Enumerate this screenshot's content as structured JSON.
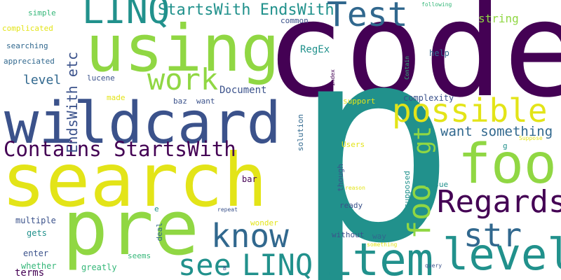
{
  "palette": {
    "purple": "#440154",
    "indigo": "#3b528b",
    "blue": "#31688e",
    "teal": "#21918c",
    "green": "#35b779",
    "lime": "#90d743",
    "yellow": "#e3e418"
  },
  "words": [
    {
      "id": "code",
      "text": "code",
      "color": "purple"
    },
    {
      "id": "p",
      "text": "p",
      "color": "teal"
    },
    {
      "id": "search",
      "text": "search",
      "color": "yellow"
    },
    {
      "id": "pre",
      "text": "pre",
      "color": "lime"
    },
    {
      "id": "using",
      "text": "using",
      "color": "lime"
    },
    {
      "id": "wildcard",
      "text": "wildcard",
      "color": "indigo"
    },
    {
      "id": "foo-large",
      "text": "foo",
      "color": "lime"
    },
    {
      "id": "item",
      "text": "item",
      "color": "teal"
    },
    {
      "id": "level-large",
      "text": "level",
      "color": "teal"
    },
    {
      "id": "linq-top",
      "text": "LINQ",
      "color": "teal"
    },
    {
      "id": "test",
      "text": "Test",
      "color": "blue"
    },
    {
      "id": "possible",
      "text": "possible",
      "color": "yellow"
    },
    {
      "id": "regards",
      "text": "Regards",
      "color": "purple"
    },
    {
      "id": "str",
      "text": "str",
      "color": "blue"
    },
    {
      "id": "know",
      "text": "know",
      "color": "blue"
    },
    {
      "id": "see",
      "text": "see",
      "color": "teal"
    },
    {
      "id": "linq-bottom",
      "text": "LINQ",
      "color": "teal"
    },
    {
      "id": "work",
      "text": "work",
      "color": "lime"
    },
    {
      "id": "contains-startswith",
      "text": "Contains StartsWith",
      "color": "purple"
    },
    {
      "id": "startswith-endswith",
      "text": "StartsWith EndsWith",
      "color": "teal"
    },
    {
      "id": "foo-vertical",
      "text": "foo",
      "color": "lime"
    },
    {
      "id": "gt",
      "text": "gt",
      "color": "lime"
    },
    {
      "id": "want-something",
      "text": "want something",
      "color": "blue"
    },
    {
      "id": "endswith-etc",
      "text": "EndsWith etc",
      "color": "indigo"
    },
    {
      "id": "level-small",
      "text": "level",
      "color": "blue"
    },
    {
      "id": "document",
      "text": "Document",
      "color": "indigo"
    },
    {
      "id": "string",
      "text": "string",
      "color": "lime"
    },
    {
      "id": "regex",
      "text": "RegEx",
      "color": "teal"
    },
    {
      "id": "terms",
      "text": "terms",
      "color": "purple"
    },
    {
      "id": "greatly",
      "text": "greatly",
      "color": "green"
    },
    {
      "id": "whether",
      "text": "whether",
      "color": "green"
    },
    {
      "id": "seems",
      "text": "seems",
      "color": "green"
    },
    {
      "id": "enter",
      "text": "enter",
      "color": "indigo"
    },
    {
      "id": "gets",
      "text": "gets",
      "color": "teal"
    },
    {
      "id": "multiple",
      "text": "multiple",
      "color": "indigo"
    },
    {
      "id": "deal",
      "text": "deal",
      "color": "blue"
    },
    {
      "id": "e",
      "text": "e",
      "color": "teal"
    },
    {
      "id": "wonder",
      "text": "wonder",
      "color": "yellow"
    },
    {
      "id": "without",
      "text": "without",
      "color": "indigo"
    },
    {
      "id": "way",
      "text": "way",
      "color": "blue"
    },
    {
      "id": "something-small",
      "text": "something",
      "color": "yellow"
    },
    {
      "id": "query",
      "text": "query",
      "color": "indigo"
    },
    {
      "id": "repeat",
      "text": "repeat",
      "color": "indigo"
    },
    {
      "id": "b",
      "text": "B",
      "color": "indigo"
    },
    {
      "id": "ready",
      "text": "ready",
      "color": "indigo"
    },
    {
      "id": "bar",
      "text": "bar",
      "color": "purple"
    },
    {
      "id": "though",
      "text": "though",
      "color": "indigo"
    },
    {
      "id": "reason",
      "text": "reason",
      "color": "yellow"
    },
    {
      "id": "supposed",
      "text": "supposed",
      "color": "teal"
    },
    {
      "id": "issue",
      "text": "issue",
      "color": "teal"
    },
    {
      "id": "g",
      "text": "g",
      "color": "teal"
    },
    {
      "id": "suppose",
      "text": "Suppose",
      "color": "yellow"
    },
    {
      "id": "users",
      "text": "Users",
      "color": "yellow"
    },
    {
      "id": "solution",
      "text": "solution",
      "color": "blue"
    },
    {
      "id": "support",
      "text": "support",
      "color": "yellow"
    },
    {
      "id": "complexity",
      "text": "complexity",
      "color": "indigo"
    },
    {
      "id": "help",
      "text": "help",
      "color": "blue"
    },
    {
      "id": "index",
      "text": "index",
      "color": "purple"
    },
    {
      "id": "contain",
      "text": "Contain",
      "color": "green"
    },
    {
      "id": "following",
      "text": "following",
      "color": "green"
    },
    {
      "id": "common",
      "text": "common",
      "color": "indigo"
    },
    {
      "id": "lucene",
      "text": "lucene",
      "color": "indigo"
    },
    {
      "id": "want-small",
      "text": "want",
      "color": "indigo"
    },
    {
      "id": "baz",
      "text": "baz",
      "color": "indigo"
    },
    {
      "id": "made",
      "text": "made",
      "color": "yellow"
    },
    {
      "id": "simple",
      "text": "simple",
      "color": "green"
    },
    {
      "id": "complicated",
      "text": "complicated",
      "color": "yellow"
    },
    {
      "id": "searching",
      "text": "searching",
      "color": "blue"
    },
    {
      "id": "appreciated",
      "text": "appreciated",
      "color": "blue"
    }
  ]
}
